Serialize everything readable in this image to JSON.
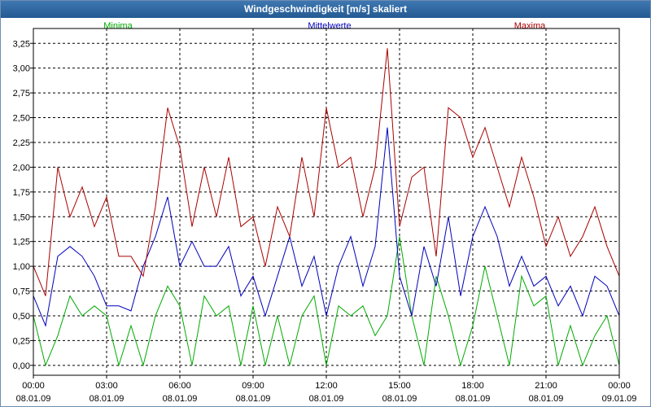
{
  "window": {
    "title": "Windgeschwindigkeit [m/s] skaliert"
  },
  "chart_data": {
    "type": "line",
    "title": "Windgeschwindigkeit [m/s] skaliert",
    "ylim": [
      -0.1,
      3.4
    ],
    "yticks": [
      "0,00",
      "0,25",
      "0,50",
      "0,75",
      "1,00",
      "1,25",
      "1,50",
      "1,75",
      "2,00",
      "2,25",
      "2,50",
      "2,75",
      "3,00",
      "3,25"
    ],
    "xticks": [
      {
        "time": "00:00",
        "date": "08.01.09"
      },
      {
        "time": "03:00",
        "date": "08.01.09"
      },
      {
        "time": "06:00",
        "date": "08.01.09"
      },
      {
        "time": "09:00",
        "date": "08.01.09"
      },
      {
        "time": "12:00",
        "date": "08.01.09"
      },
      {
        "time": "15:00",
        "date": "08.01.09"
      },
      {
        "time": "18:00",
        "date": "08.01.09"
      },
      {
        "time": "21:00",
        "date": "08.01.09"
      },
      {
        "time": "00:00",
        "date": "09.01.09"
      }
    ],
    "x_range_hours": [
      0,
      24
    ],
    "grid": true,
    "series": [
      {
        "name": "Minima",
        "color": "#00aa00",
        "x": [
          0,
          0.5,
          1,
          1.5,
          2,
          2.5,
          3,
          3.5,
          4,
          4.5,
          5,
          5.5,
          6,
          6.5,
          7,
          7.5,
          8,
          8.5,
          9,
          9.5,
          10,
          10.5,
          11,
          11.5,
          12,
          12.5,
          13,
          13.5,
          14,
          14.5,
          15,
          15.5,
          16,
          16.5,
          17,
          17.5,
          18,
          18.5,
          19,
          19.5,
          20,
          20.5,
          21,
          21.5,
          22,
          22.5,
          23,
          23.5,
          24
        ],
        "values": [
          0.5,
          0.0,
          0.3,
          0.7,
          0.5,
          0.6,
          0.5,
          0.0,
          0.4,
          0.0,
          0.5,
          0.8,
          0.6,
          0.0,
          0.7,
          0.5,
          0.6,
          0.0,
          0.6,
          0.0,
          0.5,
          0.0,
          0.5,
          0.7,
          0.0,
          0.6,
          0.5,
          0.6,
          0.3,
          0.5,
          1.3,
          0.5,
          0.0,
          0.9,
          0.5,
          0.0,
          0.4,
          1.0,
          0.5,
          0.0,
          0.9,
          0.6,
          0.7,
          0.0,
          0.4,
          0.0,
          0.3,
          0.5,
          0.0
        ]
      },
      {
        "name": "Mittelwerte",
        "color": "#0000bb",
        "x": [
          0,
          0.5,
          1,
          1.5,
          2,
          2.5,
          3,
          3.5,
          4,
          4.5,
          5,
          5.5,
          6,
          6.5,
          7,
          7.5,
          8,
          8.5,
          9,
          9.5,
          10,
          10.5,
          11,
          11.5,
          12,
          12.5,
          13,
          13.5,
          14,
          14.5,
          15,
          15.5,
          16,
          16.5,
          17,
          17.5,
          18,
          18.5,
          19,
          19.5,
          20,
          20.5,
          21,
          21.5,
          22,
          22.5,
          23,
          23.5,
          24
        ],
        "values": [
          0.7,
          0.4,
          1.1,
          1.2,
          1.1,
          0.9,
          0.6,
          0.6,
          0.55,
          1.0,
          1.3,
          1.7,
          1.0,
          1.25,
          1.0,
          1.0,
          1.2,
          0.7,
          0.9,
          0.5,
          0.9,
          1.3,
          0.8,
          1.1,
          0.5,
          1.0,
          1.3,
          0.8,
          1.2,
          2.4,
          0.9,
          0.5,
          1.2,
          0.8,
          1.5,
          0.7,
          1.3,
          1.6,
          1.3,
          0.8,
          1.1,
          0.8,
          0.9,
          0.6,
          0.8,
          0.5,
          0.9,
          0.8,
          0.5
        ]
      },
      {
        "name": "Maxima",
        "color": "#aa0000",
        "x": [
          0,
          0.5,
          1,
          1.5,
          2,
          2.5,
          3,
          3.5,
          4,
          4.5,
          5,
          5.5,
          6,
          6.5,
          7,
          7.5,
          8,
          8.5,
          9,
          9.5,
          10,
          10.5,
          11,
          11.5,
          12,
          12.5,
          13,
          13.5,
          14,
          14.5,
          15,
          15.5,
          16,
          16.5,
          17,
          17.5,
          18,
          18.5,
          19,
          19.5,
          20,
          20.5,
          21,
          21.5,
          22,
          22.5,
          23,
          23.5,
          24
        ],
        "values": [
          1.0,
          0.7,
          2.0,
          1.5,
          1.8,
          1.4,
          1.7,
          1.1,
          1.1,
          0.9,
          1.6,
          2.6,
          2.2,
          1.4,
          2.0,
          1.5,
          2.1,
          1.4,
          1.5,
          1.0,
          1.6,
          1.3,
          2.1,
          1.5,
          2.6,
          2.0,
          2.1,
          1.5,
          2.0,
          3.2,
          1.4,
          1.9,
          2.0,
          1.1,
          2.6,
          2.5,
          2.1,
          2.4,
          2.0,
          1.6,
          2.1,
          1.7,
          1.2,
          1.5,
          1.1,
          1.3,
          1.6,
          1.2,
          0.9
        ]
      }
    ]
  }
}
